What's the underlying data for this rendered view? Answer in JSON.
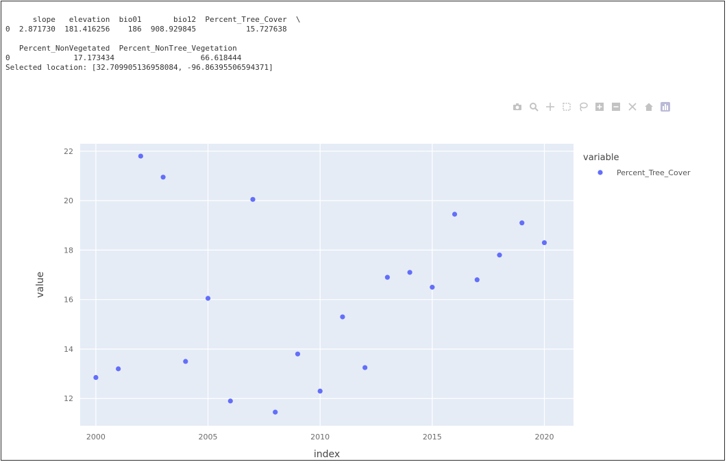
{
  "console": {
    "lines": [
      "      slope   elevation  bio01       bio12  Percent_Tree_Cover  \\",
      "0  2.871730  181.416256    186  908.929845           15.727638",
      "",
      "   Percent_NonVegetated  Percent_NonTree_Vegetation",
      "0              17.173434                   66.618444",
      "Selected location: [32.709905136958084, -96.86395506594371]"
    ]
  },
  "modebar": {
    "icons": [
      "camera-icon",
      "zoom-icon",
      "pan-icon",
      "box-select-icon",
      "lasso-icon",
      "zoom-in-icon",
      "zoom-out-icon",
      "autoscale-icon",
      "home-icon",
      "plotly-logo-icon"
    ]
  },
  "colors": {
    "marker": "#636efa",
    "plot_bg": "#e5ecf6",
    "grid": "#ffffff"
  },
  "chart_data": {
    "type": "scatter",
    "title": "",
    "xlabel": "index",
    "ylabel": "value",
    "xlim": [
      1999.3,
      2021.3
    ],
    "ylim": [
      10.9,
      22.3
    ],
    "xticks": [
      2000,
      2005,
      2010,
      2015,
      2020
    ],
    "yticks": [
      12,
      14,
      16,
      18,
      20,
      22
    ],
    "grid": true,
    "legend": {
      "title": "variable",
      "position": "top-right"
    },
    "series": [
      {
        "name": "Percent_Tree_Cover",
        "x": [
          2000,
          2001,
          2002,
          2003,
          2004,
          2005,
          2006,
          2007,
          2008,
          2009,
          2010,
          2011,
          2012,
          2013,
          2014,
          2015,
          2016,
          2017,
          2018,
          2019,
          2020
        ],
        "y": [
          12.85,
          13.2,
          21.8,
          20.95,
          13.5,
          16.05,
          11.9,
          20.05,
          11.45,
          13.8,
          12.3,
          15.3,
          13.25,
          16.9,
          17.1,
          16.5,
          19.45,
          16.8,
          17.8,
          19.1,
          18.3
        ]
      }
    ]
  }
}
